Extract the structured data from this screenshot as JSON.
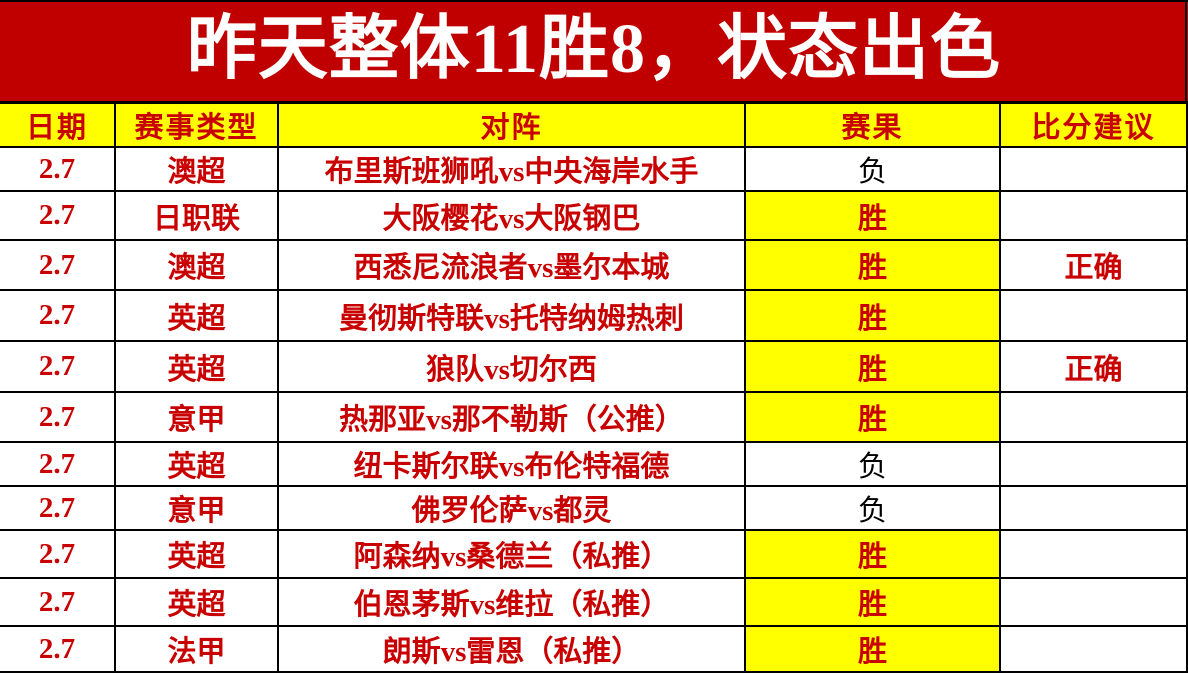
{
  "banner": {
    "title": "昨天整体11胜8，状态出色"
  },
  "colors": {
    "banner_red": "#c00000",
    "text_red": "#c80000",
    "highlight_yellow": "#ffff00",
    "title_white": "#ffffff",
    "loss_black": "#000000",
    "border_black": "#000000"
  },
  "table": {
    "headers": [
      "日期",
      "赛事类型",
      "对阵",
      "赛果",
      "比分建议"
    ],
    "rows": [
      {
        "date": "2.7",
        "league": "澳超",
        "matchup": "布里斯班狮吼vs中央海岸水手",
        "result": "负",
        "result_win": false,
        "advice": ""
      },
      {
        "date": "2.7",
        "league": "日职联",
        "matchup": "大阪樱花vs大阪钢巴",
        "result": "胜",
        "result_win": true,
        "advice": ""
      },
      {
        "date": "2.7",
        "league": "澳超",
        "matchup": "西悉尼流浪者vs墨尔本城",
        "result": "胜",
        "result_win": true,
        "advice": "正确"
      },
      {
        "date": "2.7",
        "league": "英超",
        "matchup": "曼彻斯特联vs托特纳姆热刺",
        "result": "胜",
        "result_win": true,
        "advice": ""
      },
      {
        "date": "2.7",
        "league": "英超",
        "matchup": "狼队vs切尔西",
        "result": "胜",
        "result_win": true,
        "advice": "正确"
      },
      {
        "date": "2.7",
        "league": "意甲",
        "matchup": "热那亚vs那不勒斯（公推）",
        "result": "胜",
        "result_win": true,
        "advice": ""
      },
      {
        "date": "2.7",
        "league": "英超",
        "matchup": "纽卡斯尔联vs布伦特福德",
        "result": "负",
        "result_win": false,
        "advice": ""
      },
      {
        "date": "2.7",
        "league": "意甲",
        "matchup": "佛罗伦萨vs都灵",
        "result": "负",
        "result_win": false,
        "advice": ""
      },
      {
        "date": "2.7",
        "league": "英超",
        "matchup": "阿森纳vs桑德兰（私推）",
        "result": "胜",
        "result_win": true,
        "advice": ""
      },
      {
        "date": "2.7",
        "league": "英超",
        "matchup": "伯恩茅斯vs维拉（私推）",
        "result": "胜",
        "result_win": true,
        "advice": ""
      },
      {
        "date": "2.7",
        "league": "法甲",
        "matchup": "朗斯vs雷恩（私推）",
        "result": "胜",
        "result_win": true,
        "advice": ""
      }
    ]
  }
}
